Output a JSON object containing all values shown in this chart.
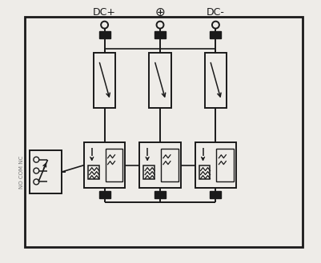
{
  "bg_color": "#eeece8",
  "line_color": "#1a1a1a",
  "dashed_color": "#555555",
  "label_color": "#777777",
  "dc_plus_label": "DC+",
  "dc_minus_label": "DC-",
  "no_com_nc_label": "NO COM NC",
  "figsize": [
    4.02,
    3.29
  ],
  "dpi": 100,
  "cols": [
    130,
    200,
    270
  ],
  "outer": [
    30,
    20,
    350,
    290
  ]
}
